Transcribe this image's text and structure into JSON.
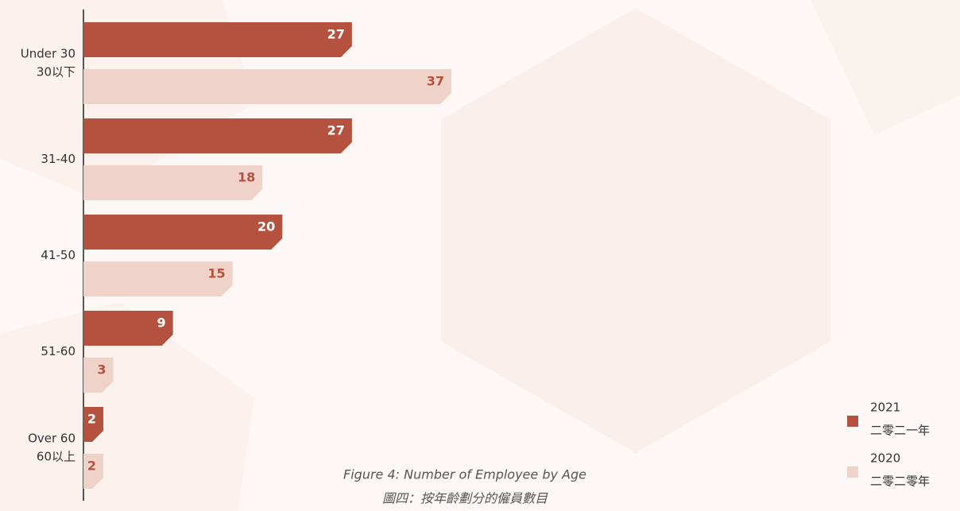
{
  "chart_data": {
    "type": "bar",
    "title": "Figure 4: Number of Employee by Age",
    "subtitle": "圖四：按年齡劃分的僱員數目",
    "categories": [
      [
        "Under 30",
        "30以下"
      ],
      [
        "31-40"
      ],
      [
        "41-50"
      ],
      [
        "51-60"
      ],
      [
        "Over 60",
        "60以上"
      ]
    ],
    "series": [
      {
        "name": [
          "2021",
          "二零二一年"
        ],
        "color": "#b5513f",
        "label_color": "#ffffff",
        "values": [
          27,
          27,
          20,
          9,
          2
        ]
      },
      {
        "name": [
          "2020",
          "二零二零年"
        ],
        "color": "#f0d3c8",
        "label_color": "#b5513f",
        "values": [
          37,
          18,
          15,
          3,
          2
        ]
      }
    ]
  }
}
